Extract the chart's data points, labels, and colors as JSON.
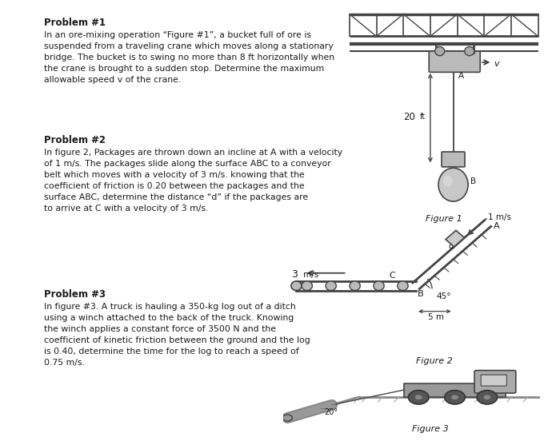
{
  "bg_color": "#ffffff",
  "problem1_title": "Problem #1",
  "problem1_text": "In an ore-mixing operation “Figure #1”, a bucket full of ore is\nsuspended from a traveling crane which moves along a stationary\nbridge. The bucket is to swing no more than 8 ft horizontally when\nthe crane is brought to a sudden stop. Determine the maximum\nallowable speed v of the crane.",
  "problem2_title": "Problem #2",
  "problem2_text": "In figure 2, Packages are thrown down an incline at A with a velocity\nof 1 m/s. The packages slide along the surface ABC to a conveyor\nbelt which moves with a velocity of 3 m/s. knowing that the\ncoefficient of friction is 0.20 between the packages and the\nsurface ABC, determine the distance “d” if the packages are\nto arrive at C with a velocity of 3 m/s.",
  "problem3_title": "Problem #3",
  "problem3_text": "In figure #3. A truck is hauling a 350-kg log out of a ditch\nusing a winch attached to the back of the truck. Knowing\nthe winch applies a constant force of 3500 N and the\ncoefficient of kinetic friction between the ground and the log\nis 0.40, determine the time for the log to reach a speed of\n0.75 m/s.",
  "fig1_caption": "Figure 1",
  "fig2_caption": "Figure 2",
  "fig3_caption": "Figure 3",
  "text_color": "#1a1a1a",
  "lc": "#444444",
  "gray_light": "#cccccc",
  "gray_med": "#999999",
  "gray_dark": "#666666"
}
